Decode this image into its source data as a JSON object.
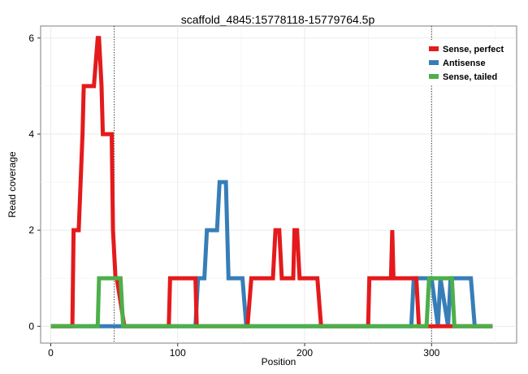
{
  "chart_data": {
    "type": "line",
    "title": "scaffold_4845:15778118-15779764.5p",
    "xlabel": "Position",
    "ylabel": "Read coverage",
    "xlim": [
      -8,
      367
    ],
    "ylim": [
      -0.35,
      6.25
    ],
    "xticks": [
      0,
      100,
      200,
      300
    ],
    "yticks": [
      0,
      2,
      4,
      6
    ],
    "minor_xticks": [
      50,
      150,
      250,
      350
    ],
    "minor_yticks": [
      1,
      3,
      5
    ],
    "vlines": [
      50,
      300
    ],
    "grid": true,
    "legend_position": "top-right",
    "series": [
      {
        "name": "Sense, perfect",
        "color": "#E41A1C",
        "x": [
          0,
          17,
          18,
          22,
          25,
          26,
          34,
          37,
          38,
          40,
          41,
          48,
          49,
          51,
          52,
          58,
          93,
          94,
          114,
          115,
          155,
          158,
          175,
          177,
          180,
          182,
          191,
          192,
          194,
          196,
          210,
          213,
          250,
          251,
          268,
          269,
          270,
          271,
          276,
          282,
          288,
          290,
          292,
          348
        ],
        "y": [
          0,
          0,
          2,
          2,
          4,
          5,
          5,
          6,
          6,
          5,
          4,
          4,
          2,
          1,
          1,
          0,
          0,
          1,
          1,
          0,
          0,
          1,
          1,
          2,
          2,
          1,
          1,
          2,
          2,
          1,
          1,
          0,
          0,
          1,
          1,
          2,
          1,
          1,
          1,
          1,
          1,
          0,
          0,
          0
        ]
      },
      {
        "name": "Antisense",
        "color": "#377EB8",
        "x": [
          0,
          114,
          116,
          121,
          123,
          131,
          133,
          138,
          140,
          151,
          154,
          284,
          286,
          300,
          305,
          307,
          313,
          315,
          331,
          334,
          348
        ],
        "y": [
          0,
          0,
          1,
          1,
          2,
          2,
          3,
          3,
          1,
          1,
          0,
          0,
          1,
          1,
          0,
          1,
          0,
          1,
          1,
          0,
          0
        ]
      },
      {
        "name": "Sense, tailed",
        "color": "#4DAF4A",
        "x": [
          0,
          37,
          38,
          55,
          57,
          296,
          298,
          302,
          304,
          316,
          318,
          348
        ],
        "y": [
          0,
          0,
          1,
          1,
          0,
          0,
          1,
          1,
          1,
          1,
          0,
          0
        ]
      }
    ]
  }
}
